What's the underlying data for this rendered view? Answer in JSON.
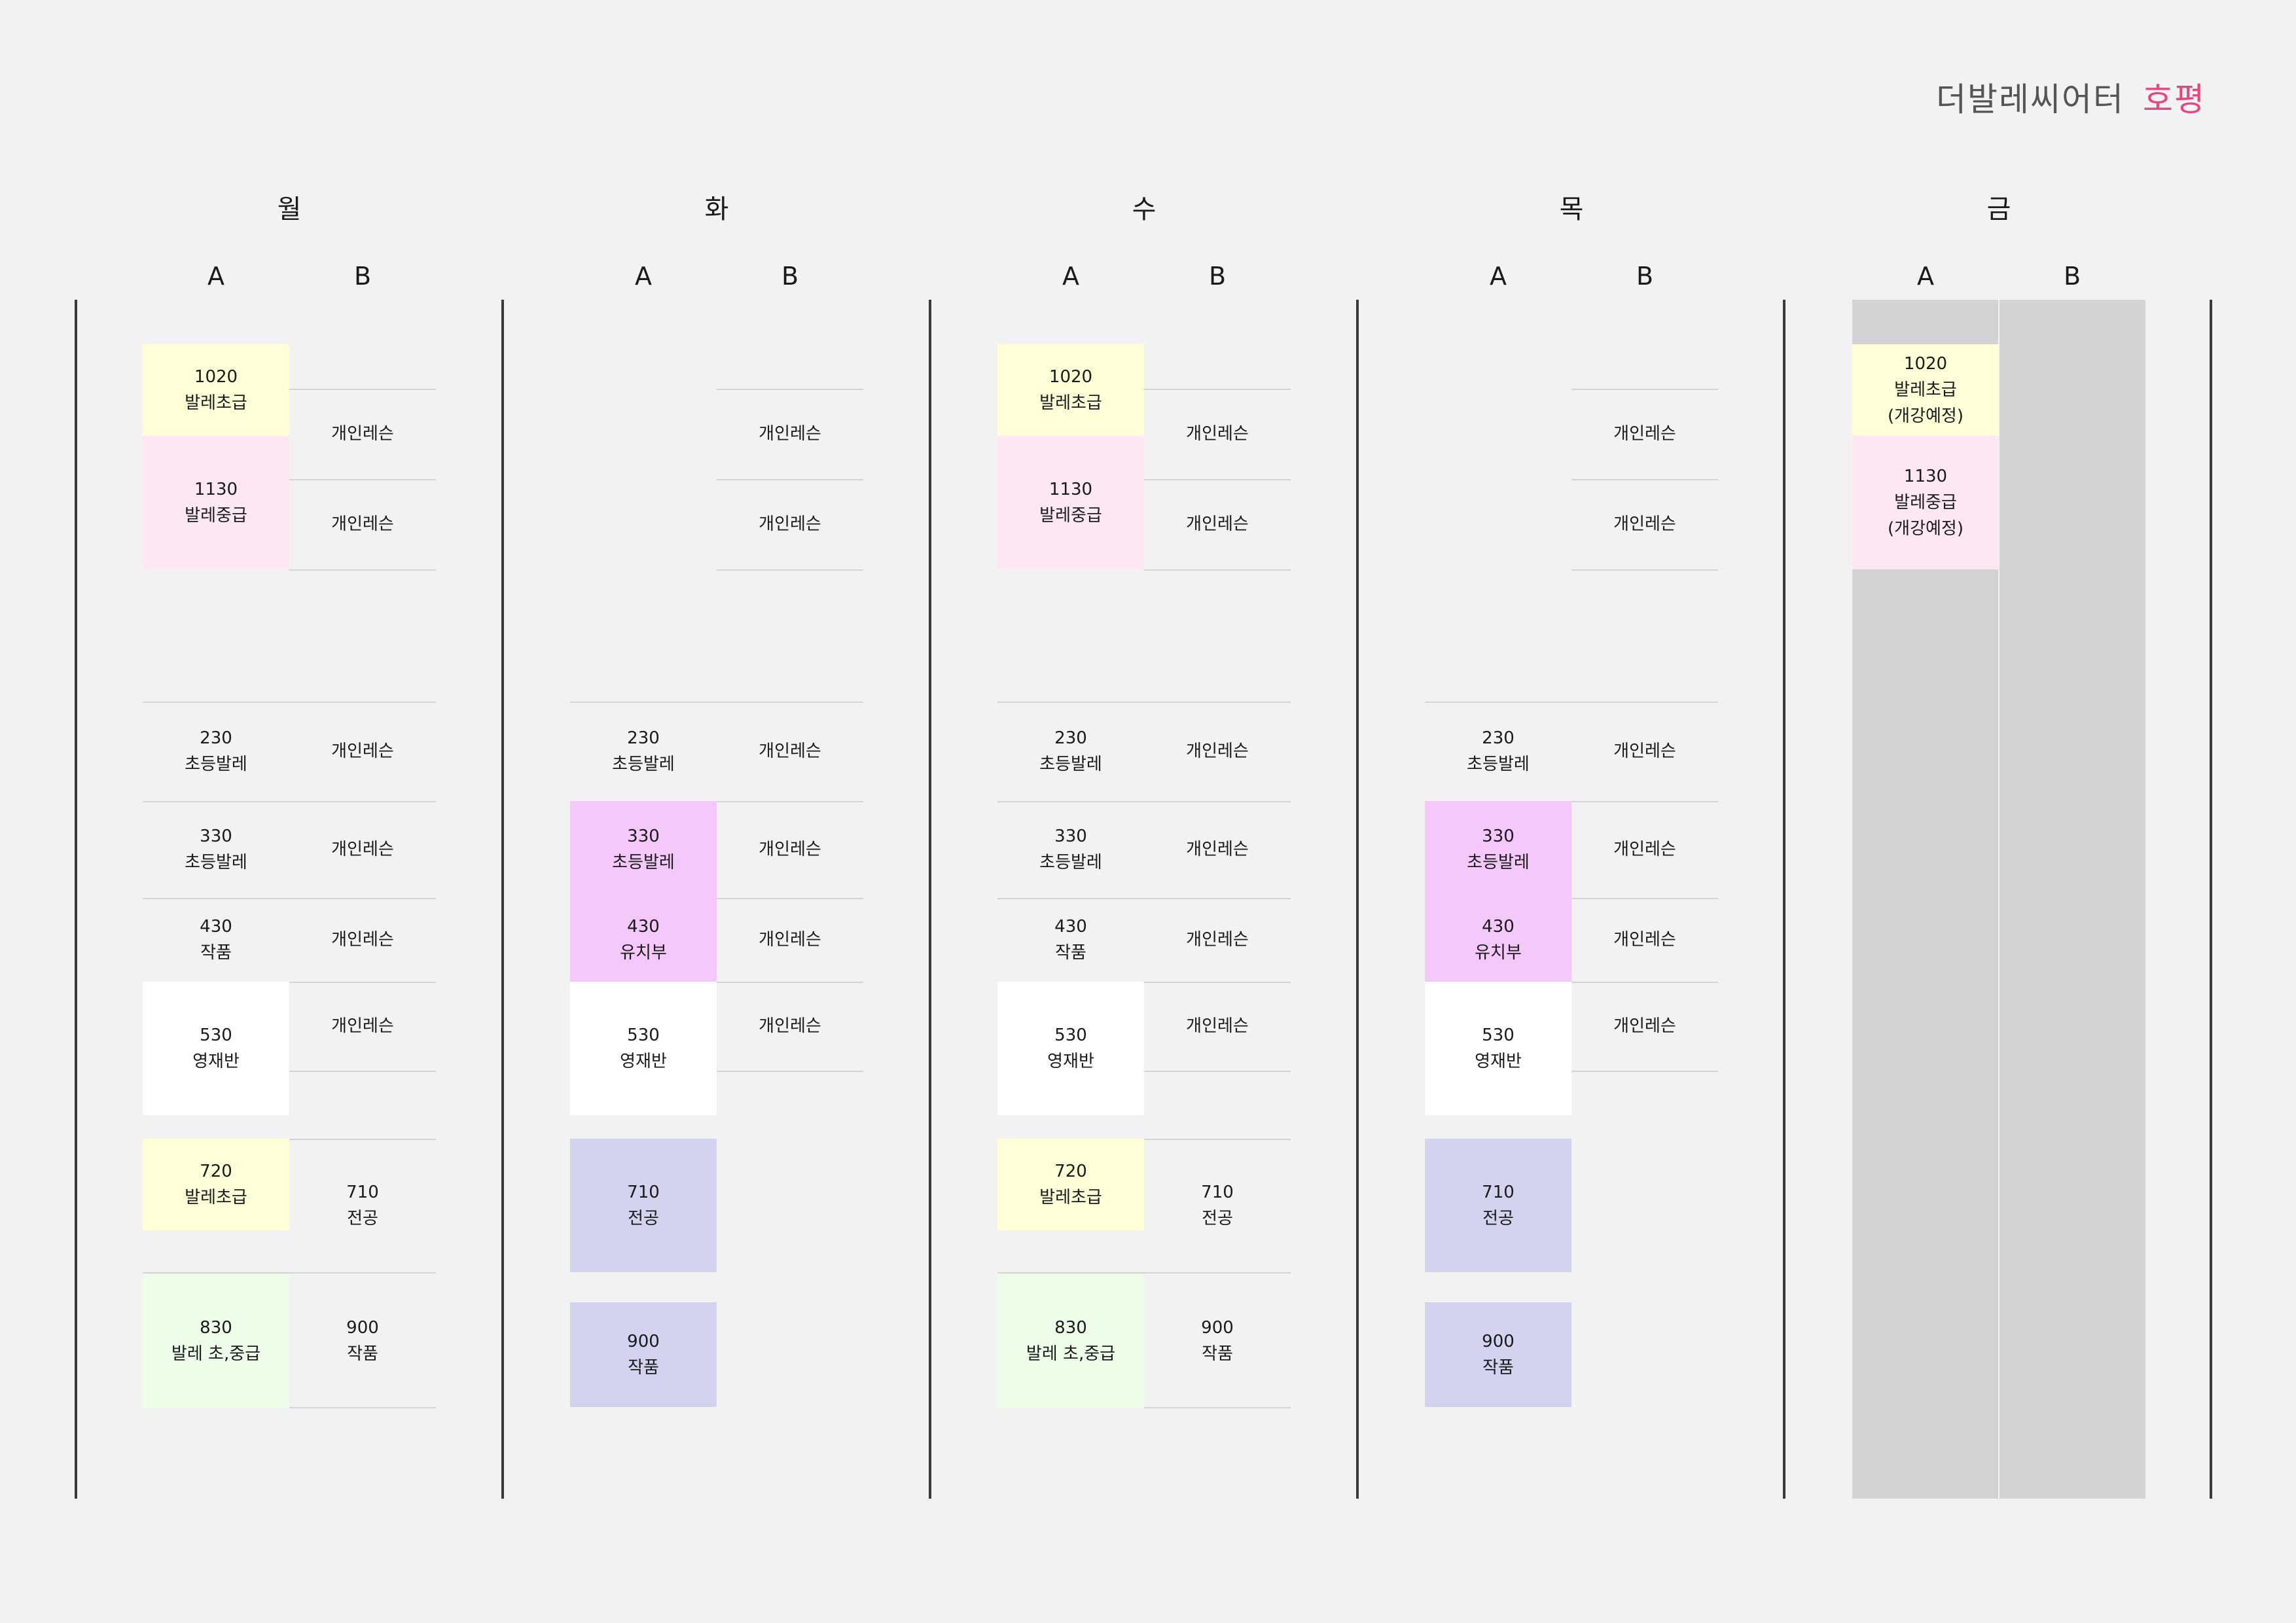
{
  "header": {
    "title": "더발레씨어터",
    "branch": "호평"
  },
  "ab": [
    "A",
    "B"
  ],
  "colors": {
    "yellow": "#ffffd8",
    "pink": "#fde8f2",
    "magenta": "#f5c8fb",
    "lavender": "#d3d3ef",
    "white": "#ffffff",
    "mint": "#edfdea",
    "closed": "#d3d3d3",
    "accent": "#e5467f"
  },
  "days": [
    {
      "label": "월",
      "a": [
        {
          "time": "1020",
          "name": "발레초급",
          "color": "yellow"
        },
        {
          "time": "1130",
          "name": "발레중급",
          "color": "pink"
        },
        {
          "time": "230",
          "name": "초등발레"
        },
        {
          "time": "330",
          "name": "초등발레"
        },
        {
          "time": "430",
          "name": "작품"
        },
        {
          "time": "530",
          "name": "영재반",
          "color": "white"
        },
        {
          "time": "720",
          "name": "발레초급",
          "color": "yellow"
        },
        {
          "time": "830",
          "name": "발레 초,중급",
          "color": "mint"
        }
      ],
      "b": [
        {
          "name": "개인레슨"
        },
        {
          "name": "개인레슨"
        },
        {
          "name": "개인레슨"
        },
        {
          "name": "개인레슨"
        },
        {
          "name": "개인레슨"
        },
        {
          "name": "개인레슨"
        },
        {
          "time": "710",
          "name": "전공"
        },
        {
          "time": "900",
          "name": "작품"
        }
      ]
    },
    {
      "label": "화",
      "a": [
        {
          "time": "230",
          "name": "초등발레"
        },
        {
          "time": "330",
          "name": "초등발레",
          "color": "magenta"
        },
        {
          "time": "430",
          "name": "유치부",
          "color": "magenta"
        },
        {
          "time": "530",
          "name": "영재반",
          "color": "white"
        },
        {
          "time": "710",
          "name": "전공",
          "color": "lavender"
        },
        {
          "time": "900",
          "name": "작품",
          "color": "lavender"
        }
      ],
      "b": [
        {
          "name": "개인레슨"
        },
        {
          "name": "개인레슨"
        },
        {
          "name": "개인레슨"
        },
        {
          "name": "개인레슨"
        },
        {
          "name": "개인레슨"
        },
        {
          "name": "개인레슨"
        }
      ]
    },
    {
      "label": "수",
      "a": [
        {
          "time": "1020",
          "name": "발레초급",
          "color": "yellow"
        },
        {
          "time": "1130",
          "name": "발레중급",
          "color": "pink"
        },
        {
          "time": "230",
          "name": "초등발레"
        },
        {
          "time": "330",
          "name": "초등발레"
        },
        {
          "time": "430",
          "name": "작품"
        },
        {
          "time": "530",
          "name": "영재반",
          "color": "white"
        },
        {
          "time": "720",
          "name": "발레초급",
          "color": "yellow"
        },
        {
          "time": "830",
          "name": "발레 초,중급",
          "color": "mint"
        }
      ],
      "b": [
        {
          "name": "개인레슨"
        },
        {
          "name": "개인레슨"
        },
        {
          "name": "개인레슨"
        },
        {
          "name": "개인레슨"
        },
        {
          "name": "개인레슨"
        },
        {
          "name": "개인레슨"
        },
        {
          "time": "710",
          "name": "전공"
        },
        {
          "time": "900",
          "name": "작품"
        }
      ]
    },
    {
      "label": "목",
      "a": [
        {
          "time": "230",
          "name": "초등발레"
        },
        {
          "time": "330",
          "name": "초등발레",
          "color": "magenta"
        },
        {
          "time": "430",
          "name": "유치부",
          "color": "magenta"
        },
        {
          "time": "530",
          "name": "영재반",
          "color": "white"
        },
        {
          "time": "710",
          "name": "전공",
          "color": "lavender"
        },
        {
          "time": "900",
          "name": "작품",
          "color": "lavender"
        }
      ],
      "b": [
        {
          "name": "개인레슨"
        },
        {
          "name": "개인레슨"
        },
        {
          "name": "개인레슨"
        },
        {
          "name": "개인레슨"
        },
        {
          "name": "개인레슨"
        },
        {
          "name": "개인레슨"
        }
      ]
    },
    {
      "label": "금",
      "a": [
        {
          "time": "1020",
          "name": "발레초급",
          "note": "(개강예정)",
          "color": "yellow"
        },
        {
          "time": "1130",
          "name": "발레중급",
          "note": "(개강예정)",
          "color": "pink"
        }
      ],
      "b": []
    }
  ]
}
